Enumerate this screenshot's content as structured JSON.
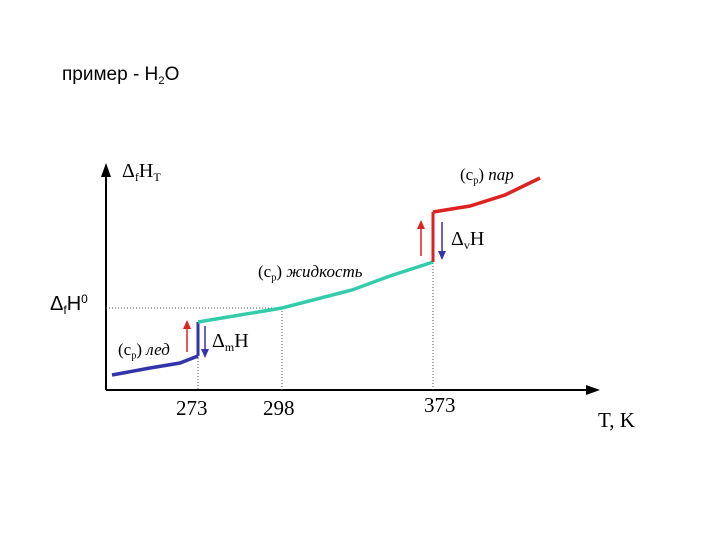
{
  "title": {
    "prefix": "пример - H",
    "sub": "2",
    "suffix": "O"
  },
  "y_axis": {
    "delta": "Δ",
    "sub1": "f",
    "main": "H",
    "sub2": "T"
  },
  "ref_level": {
    "delta": "Δ",
    "sub": "f",
    "main": "H",
    "sup": "0"
  },
  "x_axis_label": "T, K",
  "ticks": [
    "273",
    "298",
    "373"
  ],
  "labels": {
    "cp_ice": {
      "open": "(c",
      "sub": "p",
      "close": ")",
      "phase": "лед"
    },
    "cp_liquid": {
      "open": "(c",
      "sub": "p",
      "close": ")",
      "phase": "жидкость"
    },
    "cp_vapor": {
      "open": "(c",
      "sub": "p",
      "close": ")",
      "phase": "пар"
    },
    "melt": {
      "delta": "Δ",
      "sub": "m",
      "main": "H"
    },
    "vap": {
      "delta": "Δ",
      "sub": "v",
      "main": "H"
    }
  },
  "colors": {
    "ice": "#3333aa",
    "liquid": "#33ccaa",
    "vapor": "#dd2222",
    "arrow_up": "#dd2222",
    "arrow_down": "#3333aa",
    "axis": "#000000",
    "guide": "#555555"
  }
}
